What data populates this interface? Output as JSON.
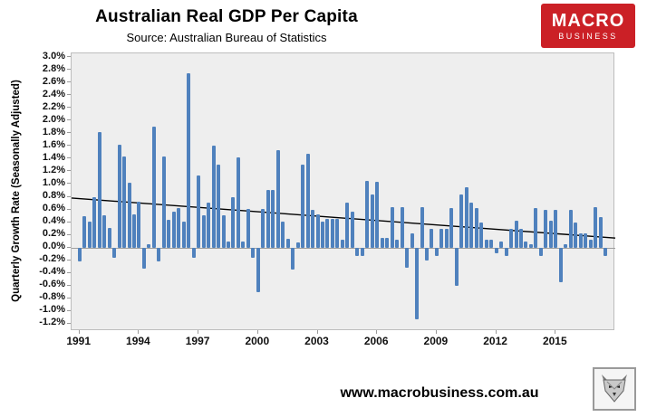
{
  "header": {
    "title": "Australian Real GDP Per Capita",
    "subtitle": "Source: Australian Bureau of Statistics",
    "logo": {
      "line1": "MACRO",
      "line2": "BUSINESS",
      "bg_color": "#cb2026",
      "text_color": "#ffffff"
    }
  },
  "footer": {
    "website": "www.macrobusiness.com.au",
    "logo_icon": "wolf-logo"
  },
  "chart_data": {
    "type": "bar",
    "title": "Australian Real GDP Per Capita",
    "subtitle": "Source: Australian Bureau of Statistics",
    "xlabel": "",
    "ylabel": "Quarterly Growth Rate (Seasonally Adjusted)",
    "ylim": [
      -1.2,
      3.0
    ],
    "y_tick_step": 0.2,
    "grid": "off",
    "legend": "none",
    "plot_bg": "#eeeeee",
    "bar_color": "#4f81bd",
    "trend_color": "#000000",
    "y_tick_labels": [
      "3.0%",
      "2.8%",
      "2.6%",
      "2.4%",
      "2.2%",
      "2.0%",
      "1.8%",
      "1.6%",
      "1.4%",
      "1.2%",
      "1.0%",
      "0.8%",
      "0.6%",
      "0.4%",
      "0.2%",
      "0.0%",
      "-0.2%",
      "-0.4%",
      "-0.6%",
      "-0.8%",
      "-1.0%",
      "-1.2%"
    ],
    "x_tick_years": [
      1991,
      1994,
      1997,
      2000,
      2003,
      2006,
      2009,
      2012,
      2015
    ],
    "trendline": {
      "type": "linear",
      "start_value_pct": 0.78,
      "end_value_pct": 0.15
    },
    "x": [
      "1991-Q1",
      "1991-Q2",
      "1991-Q3",
      "1991-Q4",
      "1992-Q1",
      "1992-Q2",
      "1992-Q3",
      "1992-Q4",
      "1993-Q1",
      "1993-Q2",
      "1993-Q3",
      "1993-Q4",
      "1994-Q1",
      "1994-Q2",
      "1994-Q3",
      "1994-Q4",
      "1995-Q1",
      "1995-Q2",
      "1995-Q3",
      "1995-Q4",
      "1996-Q1",
      "1996-Q2",
      "1996-Q3",
      "1996-Q4",
      "1997-Q1",
      "1997-Q2",
      "1997-Q3",
      "1997-Q4",
      "1998-Q1",
      "1998-Q2",
      "1998-Q3",
      "1998-Q4",
      "1999-Q1",
      "1999-Q2",
      "1999-Q3",
      "1999-Q4",
      "2000-Q1",
      "2000-Q2",
      "2000-Q3",
      "2000-Q4",
      "2001-Q1",
      "2001-Q2",
      "2001-Q3",
      "2001-Q4",
      "2002-Q1",
      "2002-Q2",
      "2002-Q3",
      "2002-Q4",
      "2003-Q1",
      "2003-Q2",
      "2003-Q3",
      "2003-Q4",
      "2004-Q1",
      "2004-Q2",
      "2004-Q3",
      "2004-Q4",
      "2005-Q1",
      "2005-Q2",
      "2005-Q3",
      "2005-Q4",
      "2006-Q1",
      "2006-Q2",
      "2006-Q3",
      "2006-Q4",
      "2007-Q1",
      "2007-Q2",
      "2007-Q3",
      "2007-Q4",
      "2008-Q1",
      "2008-Q2",
      "2008-Q3",
      "2008-Q4",
      "2009-Q1",
      "2009-Q2",
      "2009-Q3",
      "2009-Q4",
      "2010-Q1",
      "2010-Q2",
      "2010-Q3",
      "2010-Q4",
      "2011-Q1",
      "2011-Q2",
      "2011-Q3",
      "2011-Q4",
      "2012-Q1",
      "2012-Q2",
      "2012-Q3",
      "2012-Q4",
      "2013-Q1",
      "2013-Q2",
      "2013-Q3",
      "2013-Q4",
      "2014-Q1",
      "2014-Q2",
      "2014-Q3",
      "2014-Q4",
      "2015-Q1",
      "2015-Q2",
      "2015-Q3",
      "2015-Q4",
      "2016-Q1",
      "2016-Q2",
      "2016-Q3",
      "2016-Q4",
      "2017-Q1",
      "2017-Q2",
      "2017-Q3"
    ],
    "values_pct": [
      -0.22,
      0.49,
      0.41,
      0.8,
      1.82,
      0.51,
      0.31,
      -0.16,
      1.62,
      1.44,
      1.02,
      0.52,
      0.72,
      -0.33,
      0.05,
      1.91,
      -0.22,
      1.44,
      0.44,
      0.56,
      0.63,
      0.41,
      2.75,
      -0.16,
      1.13,
      0.51,
      0.71,
      1.61,
      1.31,
      0.51,
      0.1,
      0.8,
      1.42,
      0.1,
      0.61,
      -0.16,
      -0.7,
      0.61,
      0.91,
      0.91,
      1.53,
      0.41,
      0.14,
      -0.34,
      0.08,
      1.31,
      1.48,
      0.6,
      0.52,
      0.41,
      0.45,
      0.45,
      0.45,
      0.13,
      0.71,
      0.56,
      -0.14,
      -0.14,
      1.05,
      0.83,
      1.04,
      0.15,
      0.15,
      0.64,
      0.13,
      0.64,
      -0.32,
      0.22,
      -1.13,
      0.64,
      -0.2,
      0.3,
      -0.14,
      0.3,
      0.3,
      0.63,
      -0.61,
      0.83,
      0.95,
      0.71,
      0.63,
      0.4,
      0.13,
      0.13,
      -0.09,
      0.1,
      -0.14,
      0.3,
      0.43,
      0.3,
      0.1,
      0.05,
      0.62,
      -0.14,
      0.6,
      0.42,
      0.6,
      -0.55,
      0.05,
      0.6,
      0.4,
      0.23,
      0.23,
      0.12,
      0.64,
      0.48,
      -0.14
    ]
  }
}
